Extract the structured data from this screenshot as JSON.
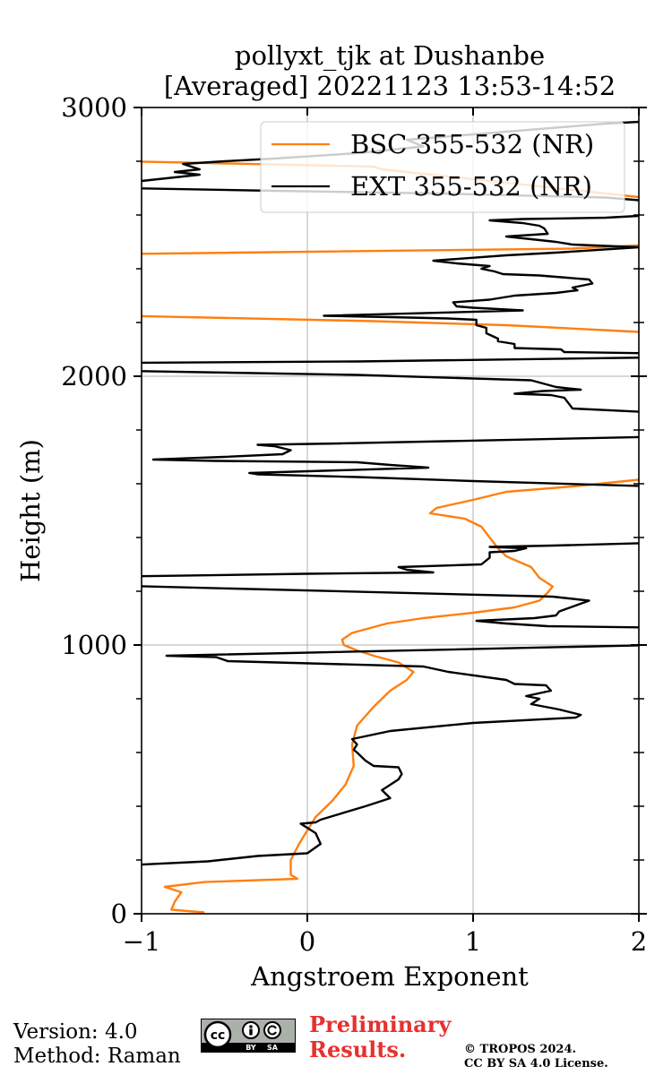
{
  "chart_data": {
    "type": "line",
    "title_line1": "pollyxt_tjk at Dushanbe",
    "title_line2": "[Averaged] 20221123 13:53-14:52",
    "xlabel": "Angstroem Exponent",
    "ylabel": "Height (m)",
    "xlim": [
      -1,
      2
    ],
    "ylim": [
      0,
      3000
    ],
    "xticks": [
      -1,
      0,
      1,
      2
    ],
    "xtick_labels": [
      "−1",
      "0",
      "1",
      "2"
    ],
    "yticks": [
      0,
      1000,
      2000,
      3000
    ],
    "ytick_labels": [
      "0",
      "1000",
      "2000",
      "3000"
    ],
    "grid": true,
    "legend_position": "top-right",
    "series": [
      {
        "name": "BSC 355-532 (NR)",
        "color": "#ff7f0e",
        "points": [
          [
            -0.62,
            5
          ],
          [
            -0.82,
            15
          ],
          [
            -0.8,
            45
          ],
          [
            -0.76,
            80
          ],
          [
            -0.86,
            100
          ],
          [
            -0.62,
            118
          ],
          [
            -0.06,
            130
          ],
          [
            -0.1,
            145
          ],
          [
            -0.1,
            200
          ],
          [
            -0.05,
            260
          ],
          [
            0.0,
            310
          ],
          [
            0.05,
            360
          ],
          [
            0.15,
            420
          ],
          [
            0.23,
            480
          ],
          [
            0.28,
            550
          ],
          [
            0.27,
            630
          ],
          [
            0.3,
            700
          ],
          [
            0.4,
            770
          ],
          [
            0.5,
            830
          ],
          [
            0.6,
            870
          ],
          [
            0.64,
            900
          ],
          [
            0.55,
            935
          ],
          [
            0.4,
            960
          ],
          [
            0.3,
            980
          ],
          [
            0.22,
            1000
          ],
          [
            0.21,
            1020
          ],
          [
            0.27,
            1045
          ],
          [
            0.48,
            1080
          ],
          [
            0.7,
            1100
          ],
          [
            1.0,
            1120
          ],
          [
            1.25,
            1140
          ],
          [
            1.4,
            1165
          ],
          [
            1.45,
            1195
          ],
          [
            1.48,
            1218
          ],
          [
            1.4,
            1250
          ],
          [
            1.35,
            1290
          ],
          [
            1.2,
            1330
          ],
          [
            1.15,
            1360
          ],
          [
            1.1,
            1400
          ],
          [
            1.05,
            1440
          ],
          [
            0.95,
            1470
          ],
          [
            0.74,
            1490
          ],
          [
            0.78,
            1510
          ],
          [
            1.0,
            1540
          ],
          [
            1.2,
            1570
          ],
          [
            1.6,
            1590
          ],
          [
            2.0,
            1615
          ],
          [
            2.1,
            1620
          ],
          [
            null,
            null
          ],
          [
            2.1,
            2140
          ],
          [
            2.0,
            2165
          ],
          [
            1.2,
            2190
          ],
          [
            0.4,
            2205
          ],
          [
            -1.1,
            2225
          ],
          [
            null,
            null
          ],
          [
            2.1,
            2490
          ],
          [
            1.6,
            2475
          ],
          [
            -1.1,
            2455
          ],
          [
            null,
            null
          ],
          [
            -1.1,
            2800
          ],
          [
            0.4,
            2780
          ],
          [
            0.45,
            2770
          ],
          [
            2.1,
            2660
          ]
        ]
      },
      {
        "name": "EXT 355-532 (NR)",
        "color": "#000000",
        "points": [
          [
            -1.1,
            180
          ],
          [
            -0.6,
            195
          ],
          [
            -0.3,
            215
          ],
          [
            0.0,
            225
          ],
          [
            0.08,
            260
          ],
          [
            0.05,
            300
          ],
          [
            -0.04,
            335
          ],
          [
            0.05,
            340
          ],
          [
            0.08,
            350
          ],
          [
            0.35,
            400
          ],
          [
            0.5,
            430
          ],
          [
            0.45,
            460
          ],
          [
            0.55,
            500
          ],
          [
            0.57,
            520
          ],
          [
            0.55,
            545
          ],
          [
            0.4,
            550
          ],
          [
            0.35,
            570
          ],
          [
            0.3,
            600
          ],
          [
            0.28,
            610
          ],
          [
            0.3,
            630
          ],
          [
            0.27,
            650
          ],
          [
            0.5,
            680
          ],
          [
            1.0,
            710
          ],
          [
            1.62,
            730
          ],
          [
            1.65,
            740
          ],
          [
            1.52,
            760
          ],
          [
            1.35,
            780
          ],
          [
            1.4,
            800
          ],
          [
            1.32,
            810
          ],
          [
            1.47,
            830
          ],
          [
            1.44,
            850
          ],
          [
            1.25,
            855
          ],
          [
            1.2,
            870
          ],
          [
            0.85,
            900
          ],
          [
            0.7,
            920
          ],
          [
            -0.48,
            940
          ],
          [
            -0.55,
            955
          ],
          [
            -0.85,
            960
          ],
          [
            2.1,
            1000
          ],
          [
            null,
            null
          ],
          [
            2.1,
            1065
          ],
          [
            1.45,
            1070
          ],
          [
            1.2,
            1080
          ],
          [
            1.02,
            1090
          ],
          [
            1.37,
            1100
          ],
          [
            1.5,
            1110
          ],
          [
            1.52,
            1125
          ],
          [
            1.7,
            1165
          ],
          [
            1.48,
            1180
          ],
          [
            -1.1,
            1220
          ],
          [
            null,
            null
          ],
          [
            -1.1,
            1255
          ],
          [
            -0.01,
            1265
          ],
          [
            0.76,
            1270
          ],
          [
            0.6,
            1280
          ],
          [
            0.55,
            1290
          ],
          [
            1.05,
            1300
          ],
          [
            1.1,
            1325
          ],
          [
            1.1,
            1345
          ],
          [
            1.25,
            1350
          ],
          [
            1.32,
            1360
          ],
          [
            1.1,
            1365
          ],
          [
            1.48,
            1370
          ],
          [
            2.1,
            1380
          ],
          [
            null,
            null
          ],
          [
            2.1,
            1590
          ],
          [
            1.0,
            1610
          ],
          [
            0.3,
            1625
          ],
          [
            -0.3,
            1635
          ],
          [
            -0.35,
            1640
          ],
          [
            0.73,
            1660
          ],
          [
            0.5,
            1670
          ],
          [
            0.3,
            1680
          ],
          [
            -0.55,
            1685
          ],
          [
            -0.93,
            1690
          ],
          [
            -0.5,
            1700
          ],
          [
            -0.15,
            1710
          ],
          [
            -0.1,
            1725
          ],
          [
            -0.2,
            1740
          ],
          [
            -0.3,
            1745
          ],
          [
            0.2,
            1750
          ],
          [
            2.1,
            1775
          ],
          [
            null,
            null
          ],
          [
            2.1,
            1865
          ],
          [
            1.6,
            1880
          ],
          [
            1.55,
            1920
          ],
          [
            1.47,
            1930
          ],
          [
            1.25,
            1935
          ],
          [
            1.42,
            1945
          ],
          [
            1.65,
            1950
          ],
          [
            1.5,
            1960
          ],
          [
            1.35,
            1985
          ],
          [
            0.3,
            2005
          ],
          [
            -1.1,
            2020
          ],
          [
            null,
            null
          ],
          [
            -1.1,
            2050
          ],
          [
            0.3,
            2055
          ],
          [
            2.1,
            2070
          ],
          [
            null,
            null
          ],
          [
            2.1,
            2085
          ],
          [
            1.55,
            2090
          ],
          [
            1.53,
            2100
          ],
          [
            1.25,
            2105
          ],
          [
            1.25,
            2120
          ],
          [
            1.15,
            2130
          ],
          [
            1.15,
            2140
          ],
          [
            1.08,
            2160
          ],
          [
            1.08,
            2180
          ],
          [
            1.02,
            2190
          ],
          [
            1.02,
            2210
          ],
          [
            0.85,
            2215
          ],
          [
            0.5,
            2220
          ],
          [
            0.1,
            2225
          ],
          [
            1.3,
            2245
          ],
          [
            1.0,
            2255
          ],
          [
            0.9,
            2260
          ],
          [
            0.88,
            2275
          ],
          [
            1.1,
            2285
          ],
          [
            1.25,
            2300
          ],
          [
            1.5,
            2310
          ],
          [
            1.63,
            2320
          ],
          [
            1.6,
            2330
          ],
          [
            1.72,
            2345
          ],
          [
            1.7,
            2360
          ],
          [
            1.4,
            2375
          ],
          [
            1.18,
            2380
          ],
          [
            1.13,
            2390
          ],
          [
            1.05,
            2400
          ],
          [
            1.1,
            2410
          ],
          [
            0.9,
            2420
          ],
          [
            0.76,
            2430
          ],
          [
            1.2,
            2450
          ],
          [
            1.5,
            2460
          ],
          [
            2.0,
            2480
          ],
          [
            1.6,
            2490
          ],
          [
            1.5,
            2500
          ],
          [
            1.35,
            2510
          ],
          [
            1.2,
            2520
          ],
          [
            1.45,
            2530
          ],
          [
            1.43,
            2550
          ],
          [
            1.4,
            2560
          ],
          [
            1.3,
            2570
          ],
          [
            1.1,
            2580
          ],
          [
            1.3,
            2585
          ],
          [
            1.8,
            2590
          ],
          [
            2.1,
            2600
          ],
          [
            null,
            null
          ],
          [
            2.1,
            2650
          ],
          [
            1.8,
            2665
          ],
          [
            0.8,
            2680
          ],
          [
            -0.2,
            2690
          ],
          [
            -1.1,
            2700
          ],
          [
            null,
            null
          ],
          [
            -1.1,
            2720
          ],
          [
            -0.65,
            2750
          ],
          [
            -0.8,
            2760
          ],
          [
            -0.65,
            2770
          ],
          [
            -0.75,
            2790
          ],
          [
            -0.5,
            2800
          ],
          [
            -0.2,
            2810
          ],
          [
            0.3,
            2830
          ],
          [
            0.7,
            2855
          ],
          [
            0.6,
            2880
          ],
          [
            1.8,
            2940
          ],
          [
            2.1,
            2950
          ]
        ]
      }
    ]
  },
  "footer": {
    "version": "Version: 4.0",
    "method": "Method: Raman",
    "preliminary_line1": "Preliminary",
    "preliminary_line2": "Results.",
    "copyright_line1": "© TROPOS 2024.",
    "copyright_line2": "CC BY SA 4.0 License.",
    "cc_text": "cc",
    "by_text": "BY",
    "sa_text": "SA"
  }
}
